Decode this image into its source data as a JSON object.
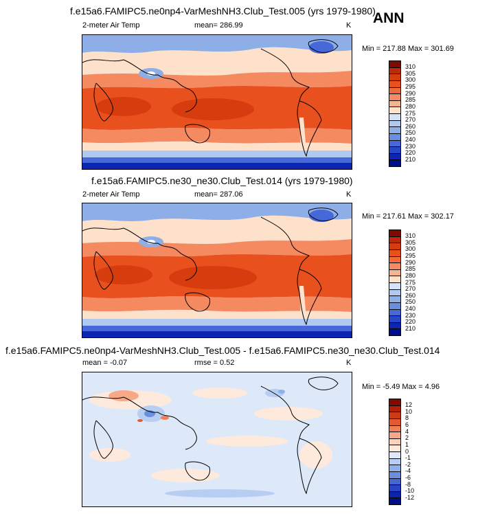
{
  "season": "ANN",
  "panels": [
    {
      "title": "f.e15a6.FAMIPC5.ne0np4-VarMeshNH3.Club_Test.005 (yrs 1979-1980)",
      "variable": "2-meter Air Temp",
      "mean_text": "mean= 286.99",
      "units": "K",
      "minmax_text": "Min = 217.88 Max = 301.69",
      "colorbar": {
        "labels": [
          "310",
          "305",
          "300",
          "295",
          "290",
          "285",
          "280",
          "275",
          "270",
          "260",
          "250",
          "240",
          "230",
          "220",
          "210"
        ],
        "colors": [
          "#7f0a00",
          "#bb2a0c",
          "#d63c0e",
          "#e8511e",
          "#f06a3c",
          "#f5895f",
          "#f9b38e",
          "#fde1cb",
          "#d5e3f7",
          "#b0c9f1",
          "#8eaee8",
          "#6a8ee0",
          "#4668d8",
          "#2846c8",
          "#0d25b3",
          "#000d8a"
        ]
      },
      "map_style": "absolute"
    },
    {
      "title": "f.e15a6.FAMIPC5.ne30_ne30.Club_Test.014 (yrs 1979-1980)",
      "variable": "2-meter Air Temp",
      "mean_text": "mean= 287.06",
      "units": "K",
      "minmax_text": "Min = 217.61 Max = 302.17",
      "colorbar": {
        "labels": [
          "310",
          "305",
          "300",
          "295",
          "290",
          "285",
          "280",
          "275",
          "270",
          "260",
          "250",
          "240",
          "230",
          "220",
          "210"
        ],
        "colors": [
          "#7f0a00",
          "#bb2a0c",
          "#d63c0e",
          "#e8511e",
          "#f06a3c",
          "#f5895f",
          "#f9b38e",
          "#fde1cb",
          "#d5e3f7",
          "#b0c9f1",
          "#8eaee8",
          "#6a8ee0",
          "#4668d8",
          "#2846c8",
          "#0d25b3",
          "#000d8a"
        ]
      },
      "map_style": "absolute"
    },
    {
      "title": "f.e15a6.FAMIPC5.ne0np4-VarMeshNH3.Club_Test.005 - f.e15a6.FAMIPC5.ne30_ne30.Club_Test.014",
      "mean_text": "mean =  -0.07",
      "rmse_text": "rmse =   0.52",
      "units": "K",
      "minmax_text": "Min =  -5.49 Max =   4.96",
      "colorbar": {
        "labels": [
          "12",
          "10",
          "8",
          "6",
          "4",
          "2",
          "1",
          "0",
          "-1",
          "-2",
          "-4",
          "-6",
          "-8",
          "-10",
          "-12"
        ],
        "colors": [
          "#7f0a00",
          "#b0200a",
          "#cf3a16",
          "#e35a30",
          "#ef8058",
          "#f7a886",
          "#fbd2bb",
          "#fdeadc",
          "#dde8f8",
          "#b7cdf2",
          "#8fb0e8",
          "#6a8fe0",
          "#4567d6",
          "#2743c6",
          "#0f23aa",
          "#001080"
        ]
      },
      "map_style": "difference"
    }
  ]
}
